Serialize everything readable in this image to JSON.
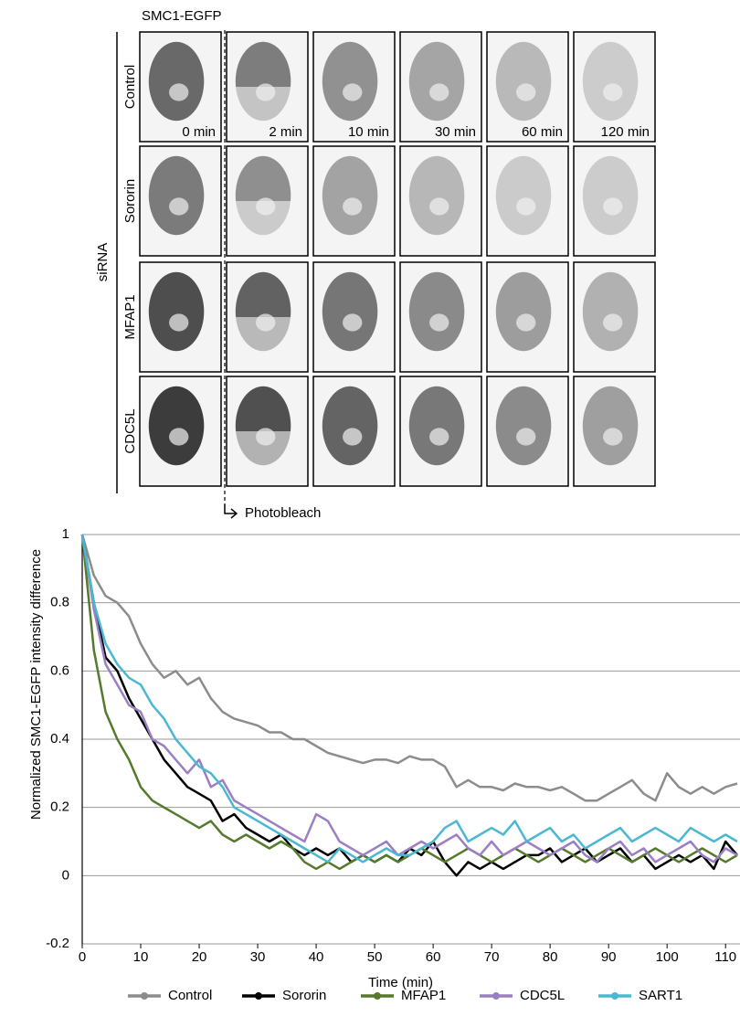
{
  "panel": {
    "title": "SMC1-EGFP",
    "group_label": "siRNA",
    "rows": [
      "Control",
      "Sororin",
      "MFAP1",
      "CDC5L"
    ],
    "times": [
      "0 min",
      "2 min",
      "10 min",
      "30 min",
      "60 min",
      "120 min"
    ],
    "event": "Photobleach"
  },
  "chart_data": {
    "type": "line",
    "xlabel": "Time (min)",
    "ylabel": "Normalized SMC1-EGFP intensity difference",
    "xlim": [
      0,
      112
    ],
    "ylim": [
      -0.2,
      1
    ],
    "xticks": [
      0,
      10,
      20,
      30,
      40,
      50,
      60,
      70,
      80,
      90,
      100,
      110
    ],
    "yticks": [
      -0.2,
      0,
      0.2,
      0.4,
      0.6,
      0.8,
      1
    ],
    "grid": true,
    "legend": "bottom",
    "x": [
      0,
      2,
      4,
      6,
      8,
      10,
      12,
      14,
      16,
      18,
      20,
      22,
      24,
      26,
      28,
      30,
      32,
      34,
      36,
      38,
      40,
      42,
      44,
      46,
      48,
      50,
      52,
      54,
      56,
      58,
      60,
      62,
      64,
      66,
      68,
      70,
      72,
      74,
      76,
      78,
      80,
      82,
      84,
      86,
      88,
      90,
      92,
      94,
      96,
      98,
      100,
      102,
      104,
      106,
      108,
      110,
      112
    ],
    "series": [
      {
        "name": "Control",
        "color": "#8c8c8c",
        "values": [
          1.0,
          0.88,
          0.82,
          0.8,
          0.76,
          0.68,
          0.62,
          0.58,
          0.6,
          0.56,
          0.58,
          0.52,
          0.48,
          0.46,
          0.45,
          0.44,
          0.42,
          0.42,
          0.4,
          0.4,
          0.38,
          0.36,
          0.35,
          0.34,
          0.33,
          0.34,
          0.34,
          0.33,
          0.35,
          0.34,
          0.34,
          0.32,
          0.26,
          0.28,
          0.26,
          0.26,
          0.25,
          0.27,
          0.26,
          0.26,
          0.25,
          0.26,
          0.24,
          0.22,
          0.22,
          0.24,
          0.26,
          0.28,
          0.24,
          0.22,
          0.3,
          0.26,
          0.24,
          0.26,
          0.24,
          0.26,
          0.27
        ]
      },
      {
        "name": "Sororin",
        "color": "#000000",
        "values": [
          1.0,
          0.8,
          0.64,
          0.6,
          0.52,
          0.46,
          0.4,
          0.34,
          0.3,
          0.26,
          0.24,
          0.22,
          0.16,
          0.18,
          0.14,
          0.12,
          0.1,
          0.12,
          0.08,
          0.06,
          0.08,
          0.06,
          0.08,
          0.04,
          0.06,
          0.04,
          0.06,
          0.04,
          0.08,
          0.06,
          0.1,
          0.04,
          0.0,
          0.04,
          0.02,
          0.04,
          0.02,
          0.04,
          0.06,
          0.06,
          0.08,
          0.04,
          0.06,
          0.08,
          0.04,
          0.06,
          0.08,
          0.04,
          0.06,
          0.02,
          0.04,
          0.06,
          0.04,
          0.06,
          0.02,
          0.1,
          0.06
        ]
      },
      {
        "name": "MFAP1",
        "color": "#557a2c",
        "values": [
          1.0,
          0.66,
          0.48,
          0.4,
          0.34,
          0.26,
          0.22,
          0.2,
          0.18,
          0.16,
          0.14,
          0.16,
          0.12,
          0.1,
          0.12,
          0.1,
          0.08,
          0.1,
          0.08,
          0.04,
          0.02,
          0.04,
          0.02,
          0.04,
          0.06,
          0.04,
          0.06,
          0.04,
          0.06,
          0.08,
          0.06,
          0.04,
          0.06,
          0.08,
          0.06,
          0.04,
          0.06,
          0.08,
          0.06,
          0.04,
          0.06,
          0.08,
          0.06,
          0.04,
          0.06,
          0.08,
          0.06,
          0.04,
          0.06,
          0.08,
          0.06,
          0.04,
          0.06,
          0.08,
          0.06,
          0.04,
          0.06
        ]
      },
      {
        "name": "CDC5L",
        "color": "#9b7fc4",
        "values": [
          1.0,
          0.78,
          0.62,
          0.56,
          0.5,
          0.48,
          0.4,
          0.38,
          0.34,
          0.3,
          0.34,
          0.26,
          0.28,
          0.22,
          0.2,
          0.18,
          0.16,
          0.14,
          0.12,
          0.1,
          0.18,
          0.16,
          0.1,
          0.08,
          0.06,
          0.08,
          0.1,
          0.06,
          0.08,
          0.1,
          0.08,
          0.1,
          0.12,
          0.08,
          0.06,
          0.1,
          0.06,
          0.08,
          0.1,
          0.08,
          0.06,
          0.08,
          0.1,
          0.06,
          0.04,
          0.08,
          0.1,
          0.06,
          0.08,
          0.04,
          0.06,
          0.08,
          0.1,
          0.06,
          0.04,
          0.08,
          0.06
        ]
      },
      {
        "name": "SART1",
        "color": "#4bb8d2",
        "values": [
          1.0,
          0.8,
          0.68,
          0.62,
          0.58,
          0.56,
          0.5,
          0.46,
          0.4,
          0.36,
          0.32,
          0.3,
          0.26,
          0.2,
          0.18,
          0.16,
          0.14,
          0.12,
          0.1,
          0.08,
          0.06,
          0.04,
          0.08,
          0.06,
          0.04,
          0.06,
          0.08,
          0.06,
          0.06,
          0.08,
          0.1,
          0.14,
          0.16,
          0.1,
          0.12,
          0.14,
          0.12,
          0.16,
          0.1,
          0.12,
          0.14,
          0.1,
          0.12,
          0.08,
          0.1,
          0.12,
          0.14,
          0.1,
          0.12,
          0.14,
          0.12,
          0.1,
          0.14,
          0.12,
          0.1,
          0.12,
          0.1
        ]
      }
    ]
  }
}
